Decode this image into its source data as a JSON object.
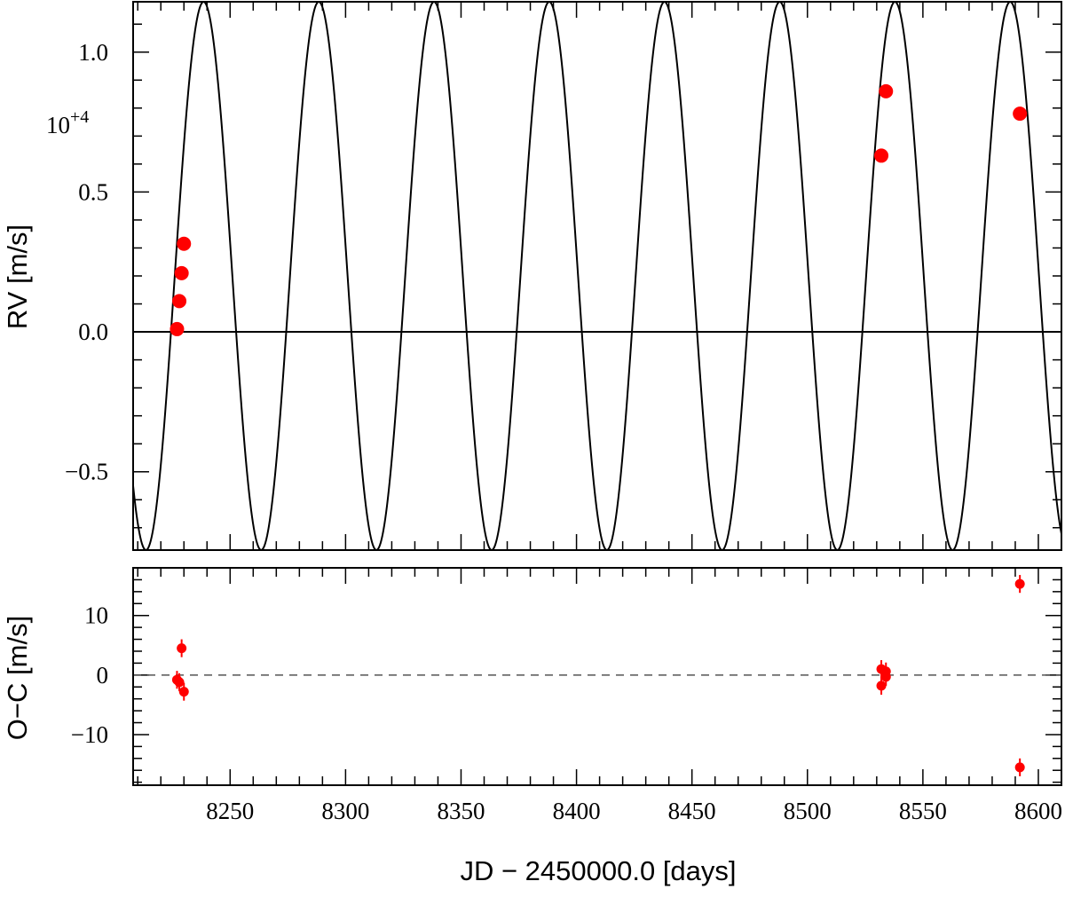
{
  "chart_data": [
    {
      "type": "line",
      "panel": "rv",
      "title": "",
      "xlabel": "",
      "ylabel": "RV [m/s]",
      "y_multiplier": "10",
      "y_multiplier_exponent": "+4",
      "xlim": [
        8208,
        8610
      ],
      "ylim": [
        -0.78,
        1.18
      ],
      "xticks": [
        8250,
        8300,
        8350,
        8400,
        8450,
        8500,
        8550,
        8600
      ],
      "yticks": [
        -0.5,
        0.0,
        0.5,
        1.0
      ],
      "ytick_labels": [
        "−0.5",
        "0.0",
        "0.5",
        "1.0"
      ],
      "zero_line": true,
      "model": {
        "name": "",
        "kind": "sinusoid",
        "period_days": 49.9,
        "peak_time": 8238.5,
        "offset": 0.2,
        "amplitude": 0.98,
        "color": "#000000"
      },
      "series": [
        {
          "name": "",
          "color": "#ff0000",
          "points": [
            {
              "x": 8227.0,
              "y": 0.01
            },
            {
              "x": 8228.0,
              "y": 0.11
            },
            {
              "x": 8229.0,
              "y": 0.21
            },
            {
              "x": 8230.0,
              "y": 0.315
            },
            {
              "x": 8532.0,
              "y": 0.63
            },
            {
              "x": 8534.0,
              "y": 0.86
            },
            {
              "x": 8592.0,
              "y": 0.78
            }
          ]
        }
      ]
    },
    {
      "type": "scatter",
      "panel": "residuals",
      "title": "",
      "xlabel": "JD − 2450000.0 [days]",
      "ylabel": "O−C [m/s]",
      "xlim": [
        8208,
        8610
      ],
      "ylim": [
        -18.5,
        18
      ],
      "xticks": [
        8250,
        8300,
        8350,
        8400,
        8450,
        8500,
        8550,
        8600
      ],
      "xtick_labels": [
        "8250",
        "8300",
        "8350",
        "8400",
        "8450",
        "8500",
        "8550",
        "8600"
      ],
      "yticks": [
        -10,
        0,
        10
      ],
      "ytick_labels": [
        "−10",
        "0",
        "10"
      ],
      "zero_line": "dashed",
      "series": [
        {
          "name": "",
          "color": "#ff0000",
          "points": [
            {
              "x": 8227.0,
              "y": -0.8,
              "err": 1.5
            },
            {
              "x": 8228.0,
              "y": -1.2,
              "err": 1.5
            },
            {
              "x": 8229.0,
              "y": 4.5,
              "err": 1.5
            },
            {
              "x": 8230.0,
              "y": -2.8,
              "err": 1.5
            },
            {
              "x": 8532.0,
              "y": 1.0,
              "err": 1.5
            },
            {
              "x": 8532.0,
              "y": -1.8,
              "err": 1.5
            },
            {
              "x": 8534.0,
              "y": 0.6,
              "err": 1.5
            },
            {
              "x": 8534.0,
              "y": -0.3,
              "err": 1.5
            },
            {
              "x": 8592.0,
              "y": 15.3,
              "err": 1.5
            },
            {
              "x": 8592.0,
              "y": -15.5,
              "err": 1.5
            }
          ]
        }
      ]
    }
  ]
}
